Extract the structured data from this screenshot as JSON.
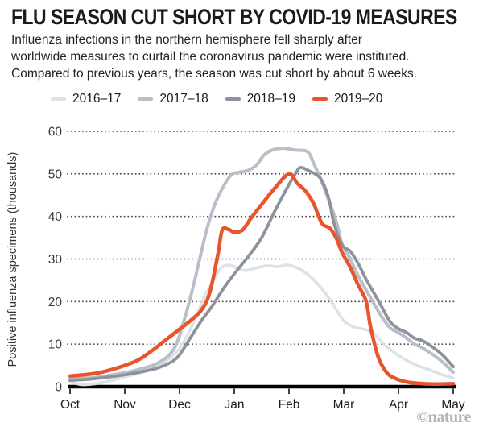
{
  "header": {
    "title": "FLU SEASON CUT SHORT BY COVID-19 MEASURES",
    "subtitle_lines": [
      "Influenza infections in the northern hemisphere fell sharply after",
      "worldwide measures to curtail the coronavirus pandemic were instituted.",
      "Compared to previous years, the season was cut short by about 6 weeks."
    ]
  },
  "legend": [
    {
      "label": "2016–17",
      "color": "#dce2e9"
    },
    {
      "label": "2017–18",
      "color": "#b8bfc8"
    },
    {
      "label": "2018–19",
      "color": "#8c939d"
    },
    {
      "label": "2019–20",
      "color": "#e8542b"
    }
  ],
  "footer": {
    "credit": "©nature"
  },
  "chart_data": {
    "type": "line",
    "title": "FLU SEASON CUT SHORT BY COVID-19 MEASURES",
    "xlabel": "",
    "ylabel": "Positive influenza specimens (thousands)",
    "x_categories": [
      "Oct",
      "Nov",
      "Dec",
      "Jan",
      "Feb",
      "Mar",
      "Apr",
      "May"
    ],
    "x_unit": "months_from_oct",
    "ylim": [
      0,
      60
    ],
    "yticks": [
      0,
      10,
      20,
      30,
      40,
      50,
      60
    ],
    "grid": "dotted-horizontal",
    "legend_position": "top-left",
    "axis_color": "#000000",
    "gridline_color": "#4a4a4a",
    "series": [
      {
        "name": "2016–17",
        "color": "#dce2e9",
        "stroke_width": 3.6,
        "points": [
          [
            0,
            1.1
          ],
          [
            0.2,
            0.5
          ],
          [
            0.4,
            0.6
          ],
          [
            0.65,
            1.1
          ],
          [
            1,
            2.3
          ],
          [
            1.3,
            3.3
          ],
          [
            1.6,
            4.8
          ],
          [
            1.85,
            7
          ],
          [
            2,
            9
          ],
          [
            2.2,
            13.5
          ],
          [
            2.45,
            21
          ],
          [
            2.6,
            24.5
          ],
          [
            2.75,
            27.8
          ],
          [
            2.9,
            28.6
          ],
          [
            3.05,
            27.9
          ],
          [
            3.2,
            27.3
          ],
          [
            3.4,
            27.9
          ],
          [
            3.6,
            28.4
          ],
          [
            3.8,
            28.2
          ],
          [
            3.95,
            28.6
          ],
          [
            4.1,
            28.2
          ],
          [
            4.3,
            26.8
          ],
          [
            4.5,
            24.5
          ],
          [
            4.65,
            22.2
          ],
          [
            4.8,
            19.5
          ],
          [
            5,
            15.5
          ],
          [
            5.2,
            14
          ],
          [
            5.4,
            13.4
          ],
          [
            5.55,
            12.5
          ],
          [
            5.75,
            9.8
          ],
          [
            6,
            7.3
          ],
          [
            6.3,
            5.2
          ],
          [
            6.6,
            3.8
          ],
          [
            6.8,
            2.8
          ],
          [
            7,
            2
          ]
        ]
      },
      {
        "name": "2017–18",
        "color": "#b8bfc8",
        "stroke_width": 4,
        "points": [
          [
            0,
            1.8
          ],
          [
            0.3,
            2
          ],
          [
            0.6,
            2.4
          ],
          [
            1,
            3.3
          ],
          [
            1.3,
            4.2
          ],
          [
            1.6,
            5.5
          ],
          [
            1.85,
            8
          ],
          [
            2,
            12
          ],
          [
            2.2,
            21
          ],
          [
            2.35,
            29
          ],
          [
            2.5,
            37
          ],
          [
            2.65,
            43
          ],
          [
            2.8,
            47
          ],
          [
            2.95,
            49.8
          ],
          [
            3.1,
            50.4
          ],
          [
            3.25,
            50.8
          ],
          [
            3.4,
            52
          ],
          [
            3.55,
            54.5
          ],
          [
            3.7,
            55.6
          ],
          [
            3.9,
            56
          ],
          [
            4.1,
            55.6
          ],
          [
            4.34,
            55.2
          ],
          [
            4.45,
            52.5
          ],
          [
            4.57,
            49
          ],
          [
            4.72,
            44
          ],
          [
            4.87,
            38.5
          ],
          [
            4.97,
            33.5
          ],
          [
            5.12,
            30
          ],
          [
            5.26,
            26.1
          ],
          [
            5.41,
            22.7
          ],
          [
            5.56,
            19.3
          ],
          [
            5.71,
            16.1
          ],
          [
            5.85,
            13.8
          ],
          [
            6,
            12.7
          ],
          [
            6.15,
            11.4
          ],
          [
            6.29,
            10
          ],
          [
            6.44,
            9.1
          ],
          [
            6.74,
            6.5
          ],
          [
            7,
            3.4
          ]
        ]
      },
      {
        "name": "2018–19",
        "color": "#8c939d",
        "stroke_width": 3.8,
        "points": [
          [
            0,
            1.5
          ],
          [
            0.3,
            1.7
          ],
          [
            0.6,
            2.1
          ],
          [
            1,
            2.8
          ],
          [
            1.3,
            3.5
          ],
          [
            1.6,
            4.4
          ],
          [
            1.85,
            5.8
          ],
          [
            2,
            7.5
          ],
          [
            2.2,
            11.5
          ],
          [
            2.4,
            15.5
          ],
          [
            2.6,
            19
          ],
          [
            2.8,
            23
          ],
          [
            3,
            26.5
          ],
          [
            3.25,
            30.5
          ],
          [
            3.5,
            35
          ],
          [
            3.75,
            41.5
          ],
          [
            4,
            47.5
          ],
          [
            4.13,
            50.3
          ],
          [
            4.21,
            51.5
          ],
          [
            4.35,
            50.8
          ],
          [
            4.57,
            49
          ],
          [
            4.72,
            44.5
          ],
          [
            4.82,
            38.5
          ],
          [
            4.97,
            33.3
          ],
          [
            5.12,
            31.8
          ],
          [
            5.26,
            29
          ],
          [
            5.41,
            25.2
          ],
          [
            5.56,
            21.8
          ],
          [
            5.71,
            18.4
          ],
          [
            5.85,
            15.2
          ],
          [
            6,
            13.6
          ],
          [
            6.15,
            12.7
          ],
          [
            6.29,
            11.4
          ],
          [
            6.44,
            10.8
          ],
          [
            6.6,
            9.5
          ],
          [
            6.8,
            7.5
          ],
          [
            7,
            4.7
          ]
        ]
      },
      {
        "name": "2019–20",
        "color": "#e8542b",
        "stroke_width": 4.5,
        "points": [
          [
            0,
            2.5
          ],
          [
            0.25,
            2.8
          ],
          [
            0.5,
            3.2
          ],
          [
            0.75,
            4
          ],
          [
            1,
            5
          ],
          [
            1.25,
            6.3
          ],
          [
            1.5,
            8.5
          ],
          [
            1.75,
            11
          ],
          [
            2,
            13.5
          ],
          [
            2.2,
            15.5
          ],
          [
            2.4,
            18
          ],
          [
            2.55,
            22
          ],
          [
            2.7,
            31
          ],
          [
            2.78,
            36.8
          ],
          [
            2.9,
            36.9
          ],
          [
            3,
            36.3
          ],
          [
            3.15,
            36.8
          ],
          [
            3.3,
            39.5
          ],
          [
            3.5,
            42.8
          ],
          [
            3.75,
            46.8
          ],
          [
            4,
            50
          ],
          [
            4.15,
            47.8
          ],
          [
            4.3,
            46
          ],
          [
            4.45,
            43
          ],
          [
            4.6,
            38.4
          ],
          [
            4.75,
            37.2
          ],
          [
            4.87,
            34.7
          ],
          [
            4.97,
            31.5
          ],
          [
            5.12,
            28
          ],
          [
            5.26,
            24
          ],
          [
            5.41,
            20
          ],
          [
            5.49,
            14
          ],
          [
            5.63,
            7
          ],
          [
            5.78,
            3.4
          ],
          [
            5.93,
            2
          ],
          [
            6.15,
            1.1
          ],
          [
            6.44,
            0.7
          ],
          [
            6.7,
            0.6
          ],
          [
            7,
            0.7
          ]
        ]
      }
    ]
  }
}
